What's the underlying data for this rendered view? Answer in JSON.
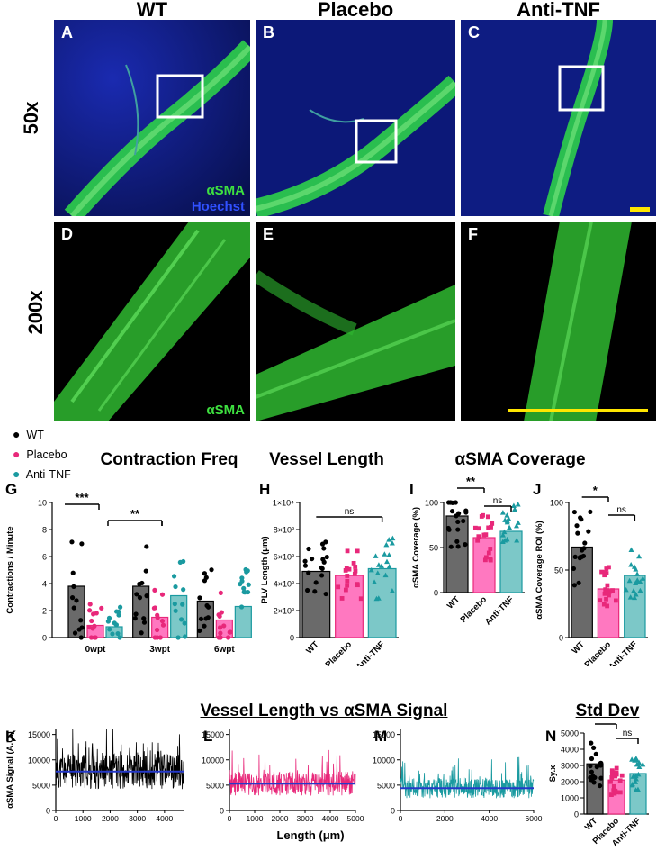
{
  "columns": [
    "WT",
    "Placebo",
    "Anti-TNF"
  ],
  "rows": [
    "50x",
    "200x"
  ],
  "panel_letters": [
    "A",
    "B",
    "C",
    "D",
    "E",
    "F",
    "G",
    "H",
    "I",
    "J",
    "K",
    "L",
    "M",
    "N"
  ],
  "stain_labels": {
    "asma": "αSMA",
    "hoechst": "Hoechst"
  },
  "legend": [
    {
      "label": "WT",
      "color": "#000000"
    },
    {
      "label": "Placebo",
      "color": "#e8287a"
    },
    {
      "label": "Anti-TNF",
      "color": "#1a9aa0"
    }
  ],
  "titles": {
    "contraction": "Contraction Freq",
    "vessel_length": "Vessel Length",
    "coverage": "αSMA Coverage",
    "signal": "Vessel Length vs αSMA Signal",
    "stddev": "Std Dev"
  },
  "chart_data": [
    {
      "id": "G",
      "type": "bar",
      "ylabel": "Contractions / Minute",
      "categories": [
        "0wpt",
        "3wpt",
        "6wpt"
      ],
      "series": [
        {
          "name": "WT",
          "values": [
            3.8,
            3.8,
            2.7
          ]
        },
        {
          "name": "Placebo",
          "values": [
            0.9,
            1.5,
            1.3
          ]
        },
        {
          "name": "Anti-TNF",
          "values": [
            0.8,
            3.1,
            2.3
          ]
        }
      ],
      "ylim": [
        0,
        10
      ],
      "yticks": [
        0,
        2,
        4,
        6,
        8,
        10
      ],
      "significance": [
        {
          "label": "***"
        },
        {
          "label": "**"
        }
      ]
    },
    {
      "id": "H",
      "type": "bar",
      "ylabel": "PLV Length (μm)",
      "categories": [
        "WT",
        "Placebo",
        "Anti-TNF"
      ],
      "values": [
        4900,
        4600,
        5100
      ],
      "ylim": [
        0,
        10000
      ],
      "ytick_labels": [
        "0",
        "2×10³",
        "4×10³",
        "6×10³",
        "8×10³",
        "1×10⁴"
      ],
      "significance": [
        {
          "label": "ns"
        }
      ]
    },
    {
      "id": "I",
      "type": "bar",
      "ylabel": "αSMA Coverage (%)",
      "categories": [
        "WT",
        "Placebo",
        "Anti-TNF"
      ],
      "values": [
        85,
        61,
        68
      ],
      "ylim": [
        0,
        100
      ],
      "yticks": [
        0,
        50,
        100
      ],
      "significance": [
        {
          "label": "**"
        },
        {
          "label": "ns"
        }
      ]
    },
    {
      "id": "J",
      "type": "bar",
      "ylabel": "αSMA Coverage ROI (%)",
      "categories": [
        "WT",
        "Placebo",
        "Anti-TNF"
      ],
      "values": [
        67,
        36,
        46
      ],
      "ylim": [
        0,
        100
      ],
      "yticks": [
        0,
        50,
        100
      ],
      "significance": [
        {
          "label": "*"
        },
        {
          "label": "ns"
        }
      ]
    },
    {
      "id": "K",
      "type": "line",
      "ylabel": "αSMA Signal (A.U.)",
      "xlim": [
        0,
        4700
      ],
      "ylim": [
        0,
        16000
      ],
      "mean": 7700,
      "xticks": [
        0,
        1000,
        2000,
        3000,
        4000
      ],
      "yticks": [
        0,
        5000,
        10000,
        15000
      ]
    },
    {
      "id": "L",
      "type": "line",
      "xlim": [
        0,
        5000
      ],
      "ylim": [
        0,
        16000
      ],
      "mean": 5300,
      "xticks": [
        0,
        1000,
        2000,
        3000,
        4000,
        5000
      ],
      "yticks": [
        0,
        5000,
        10000,
        15000
      ]
    },
    {
      "id": "M",
      "type": "line",
      "xlim": [
        0,
        6000
      ],
      "ylim": [
        0,
        16000
      ],
      "mean": 4400,
      "xticks": [
        0,
        2000,
        4000,
        6000
      ],
      "yticks": [
        0,
        5000,
        10000,
        15000
      ]
    },
    {
      "id": "N",
      "type": "bar",
      "ylabel": "Sy.x",
      "categories": [
        "WT",
        "Placebo",
        "Anti-TNF"
      ],
      "values": [
        3100,
        2100,
        2500
      ],
      "ylim": [
        0,
        5000
      ],
      "yticks": [
        0,
        1000,
        2000,
        3000,
        4000,
        5000
      ],
      "significance": [
        {
          "label": "**"
        },
        {
          "label": "ns"
        }
      ]
    }
  ],
  "signal_xlabel": "Length (μm)"
}
